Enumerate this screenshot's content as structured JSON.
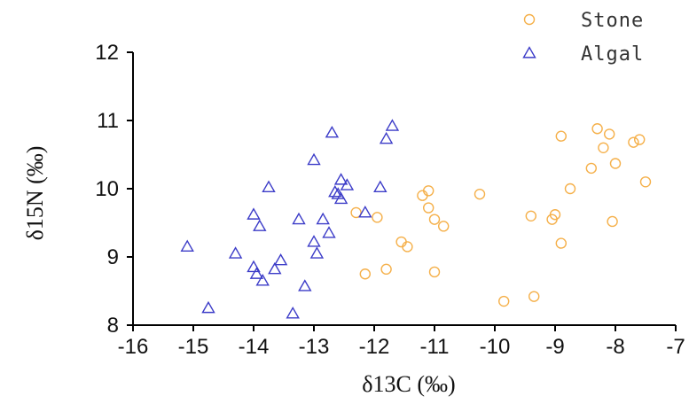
{
  "chart_data": {
    "type": "scatter",
    "title": "",
    "xlabel": "δ13C (‰)",
    "ylabel": "δ15N (‰)",
    "xlim": [
      -16,
      -7
    ],
    "ylim": [
      8,
      12
    ],
    "x_ticks": [
      "-16",
      "-15",
      "-14",
      "-13",
      "-12",
      "-11",
      "-10",
      "-9",
      "-8",
      "-7"
    ],
    "y_ticks": [
      "8",
      "9",
      "10",
      "11",
      "12"
    ],
    "grid": false,
    "legend_position": "top-right",
    "series": [
      {
        "name": "Stone",
        "marker": "circle",
        "color": "#f5b04a",
        "points": [
          [
            -12.3,
            9.65
          ],
          [
            -11.95,
            9.58
          ],
          [
            -12.15,
            8.75
          ],
          [
            -11.8,
            8.82
          ],
          [
            -11.55,
            9.22
          ],
          [
            -11.45,
            9.15
          ],
          [
            -11.2,
            9.9
          ],
          [
            -11.1,
            9.97
          ],
          [
            -11.1,
            9.72
          ],
          [
            -11.0,
            9.55
          ],
          [
            -10.85,
            9.45
          ],
          [
            -11.0,
            8.78
          ],
          [
            -10.25,
            9.92
          ],
          [
            -9.85,
            8.35
          ],
          [
            -9.4,
            9.6
          ],
          [
            -9.35,
            8.42
          ],
          [
            -9.05,
            9.55
          ],
          [
            -9.0,
            9.62
          ],
          [
            -8.9,
            10.77
          ],
          [
            -8.9,
            9.2
          ],
          [
            -8.75,
            10.0
          ],
          [
            -8.4,
            10.3
          ],
          [
            -8.3,
            10.88
          ],
          [
            -8.2,
            10.6
          ],
          [
            -8.1,
            10.8
          ],
          [
            -8.0,
            10.37
          ],
          [
            -8.05,
            9.52
          ],
          [
            -7.7,
            10.68
          ],
          [
            -7.6,
            10.72
          ],
          [
            -7.5,
            10.1
          ]
        ]
      },
      {
        "name": "Algal",
        "marker": "triangle",
        "color": "#3c3cc8",
        "points": [
          [
            -15.1,
            9.15
          ],
          [
            -14.75,
            8.25
          ],
          [
            -14.3,
            9.05
          ],
          [
            -14.0,
            9.62
          ],
          [
            -13.9,
            9.45
          ],
          [
            -13.75,
            10.02
          ],
          [
            -14.0,
            8.85
          ],
          [
            -13.95,
            8.75
          ],
          [
            -13.85,
            8.65
          ],
          [
            -13.65,
            8.82
          ],
          [
            -13.55,
            8.95
          ],
          [
            -13.35,
            8.17
          ],
          [
            -13.25,
            9.55
          ],
          [
            -13.15,
            8.57
          ],
          [
            -13.0,
            10.42
          ],
          [
            -13.0,
            9.22
          ],
          [
            -12.95,
            9.05
          ],
          [
            -12.85,
            9.55
          ],
          [
            -12.75,
            9.35
          ],
          [
            -12.7,
            10.82
          ],
          [
            -12.65,
            9.95
          ],
          [
            -12.6,
            9.92
          ],
          [
            -12.55,
            10.13
          ],
          [
            -12.55,
            9.85
          ],
          [
            -12.45,
            10.05
          ],
          [
            -12.15,
            9.65
          ],
          [
            -11.9,
            10.02
          ],
          [
            -11.8,
            10.73
          ],
          [
            -11.7,
            10.92
          ]
        ]
      }
    ]
  }
}
